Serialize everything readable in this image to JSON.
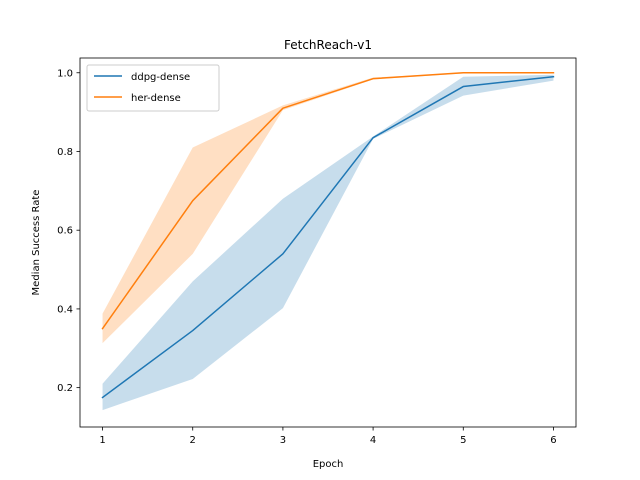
{
  "chart_data": {
    "type": "line",
    "title": "FetchReach-v1",
    "xlabel": "Epoch",
    "ylabel": "Median Success Rate",
    "x": [
      1,
      2,
      3,
      4,
      5,
      6
    ],
    "xlim": [
      0.75,
      6.25
    ],
    "ylim": [
      0.1,
      1.0375
    ],
    "xticks": [
      1,
      2,
      3,
      4,
      5,
      6
    ],
    "yticks": [
      0.2,
      0.4,
      0.6,
      0.8,
      1.0
    ],
    "ytick_labels": [
      "0.2",
      "0.4",
      "0.6",
      "0.8",
      "1.0"
    ],
    "grid": false,
    "legend_position": "top-left",
    "series": [
      {
        "name": "ddpg-dense",
        "color": "#1f77b4",
        "values": [
          0.175,
          0.345,
          0.54,
          0.835,
          0.965,
          0.99
        ],
        "lower": [
          0.143,
          0.222,
          0.402,
          0.832,
          0.942,
          0.98
        ],
        "upper": [
          0.21,
          0.47,
          0.68,
          0.838,
          0.99,
          0.995
        ]
      },
      {
        "name": "her-dense",
        "color": "#ff7f0e",
        "values": [
          0.35,
          0.675,
          0.91,
          0.985,
          1.0,
          1.0
        ],
        "lower": [
          0.313,
          0.54,
          0.905,
          0.983,
          0.998,
          0.998
        ],
        "upper": [
          0.388,
          0.81,
          0.917,
          0.988,
          1.0,
          1.0
        ]
      }
    ]
  }
}
